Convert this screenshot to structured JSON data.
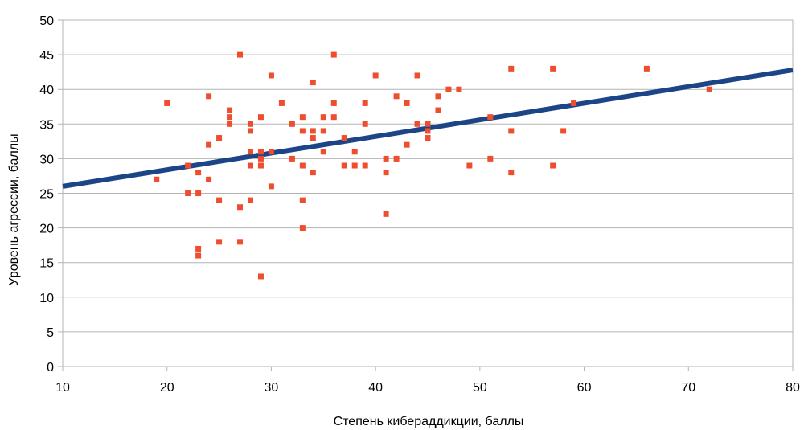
{
  "chart_data": {
    "type": "scatter",
    "xlabel": "Степень кибераддикции, баллы",
    "ylabel": "Уровень агрессии, баллы",
    "xlim": [
      10,
      80
    ],
    "ylim": [
      0,
      50
    ],
    "x_ticks": [
      10,
      20,
      30,
      40,
      50,
      60,
      70,
      80
    ],
    "y_ticks": [
      0,
      5,
      10,
      15,
      20,
      25,
      30,
      35,
      40,
      45,
      50
    ],
    "grid": "horizontal",
    "legend": "none",
    "colors": {
      "points": "#ee4d2e",
      "trendline": "#1c4587",
      "grid": "#b3b3b3"
    },
    "trendline": {
      "type": "linear",
      "x": [
        10,
        80
      ],
      "y": [
        26,
        42.8
      ]
    },
    "points": [
      {
        "x": 19,
        "y": 27
      },
      {
        "x": 20,
        "y": 38
      },
      {
        "x": 22,
        "y": 29
      },
      {
        "x": 22,
        "y": 25
      },
      {
        "x": 23,
        "y": 28
      },
      {
        "x": 23,
        "y": 25
      },
      {
        "x": 23,
        "y": 17
      },
      {
        "x": 23,
        "y": 16
      },
      {
        "x": 24,
        "y": 39
      },
      {
        "x": 24,
        "y": 32
      },
      {
        "x": 24,
        "y": 27
      },
      {
        "x": 25,
        "y": 33
      },
      {
        "x": 25,
        "y": 24
      },
      {
        "x": 25,
        "y": 18
      },
      {
        "x": 26,
        "y": 37
      },
      {
        "x": 26,
        "y": 36
      },
      {
        "x": 26,
        "y": 35
      },
      {
        "x": 27,
        "y": 45
      },
      {
        "x": 27,
        "y": 23
      },
      {
        "x": 27,
        "y": 18
      },
      {
        "x": 28,
        "y": 35
      },
      {
        "x": 28,
        "y": 34
      },
      {
        "x": 28,
        "y": 31
      },
      {
        "x": 28,
        "y": 29
      },
      {
        "x": 28,
        "y": 24
      },
      {
        "x": 29,
        "y": 36
      },
      {
        "x": 29,
        "y": 31
      },
      {
        "x": 29,
        "y": 30
      },
      {
        "x": 29,
        "y": 29
      },
      {
        "x": 29,
        "y": 13
      },
      {
        "x": 30,
        "y": 42
      },
      {
        "x": 30,
        "y": 31
      },
      {
        "x": 30,
        "y": 26
      },
      {
        "x": 31,
        "y": 38
      },
      {
        "x": 32,
        "y": 35
      },
      {
        "x": 32,
        "y": 30
      },
      {
        "x": 33,
        "y": 36
      },
      {
        "x": 33,
        "y": 34
      },
      {
        "x": 33,
        "y": 29
      },
      {
        "x": 33,
        "y": 24
      },
      {
        "x": 33,
        "y": 20
      },
      {
        "x": 34,
        "y": 41
      },
      {
        "x": 34,
        "y": 34
      },
      {
        "x": 34,
        "y": 33
      },
      {
        "x": 34,
        "y": 28
      },
      {
        "x": 35,
        "y": 36
      },
      {
        "x": 35,
        "y": 34
      },
      {
        "x": 35,
        "y": 31
      },
      {
        "x": 36,
        "y": 45
      },
      {
        "x": 36,
        "y": 38
      },
      {
        "x": 36,
        "y": 36
      },
      {
        "x": 37,
        "y": 33
      },
      {
        "x": 37,
        "y": 29
      },
      {
        "x": 38,
        "y": 31
      },
      {
        "x": 38,
        "y": 29
      },
      {
        "x": 39,
        "y": 38
      },
      {
        "x": 39,
        "y": 35
      },
      {
        "x": 39,
        "y": 29
      },
      {
        "x": 40,
        "y": 42
      },
      {
        "x": 41,
        "y": 30
      },
      {
        "x": 41,
        "y": 28
      },
      {
        "x": 41,
        "y": 22
      },
      {
        "x": 42,
        "y": 39
      },
      {
        "x": 42,
        "y": 30
      },
      {
        "x": 43,
        "y": 38
      },
      {
        "x": 43,
        "y": 32
      },
      {
        "x": 44,
        "y": 42
      },
      {
        "x": 44,
        "y": 35
      },
      {
        "x": 45,
        "y": 35
      },
      {
        "x": 45,
        "y": 34
      },
      {
        "x": 45,
        "y": 33
      },
      {
        "x": 46,
        "y": 39
      },
      {
        "x": 46,
        "y": 37
      },
      {
        "x": 47,
        "y": 40
      },
      {
        "x": 48,
        "y": 40
      },
      {
        "x": 49,
        "y": 29
      },
      {
        "x": 51,
        "y": 36
      },
      {
        "x": 51,
        "y": 30
      },
      {
        "x": 53,
        "y": 43
      },
      {
        "x": 53,
        "y": 34
      },
      {
        "x": 53,
        "y": 28
      },
      {
        "x": 57,
        "y": 43
      },
      {
        "x": 57,
        "y": 29
      },
      {
        "x": 58,
        "y": 34
      },
      {
        "x": 59,
        "y": 38
      },
      {
        "x": 66,
        "y": 43
      },
      {
        "x": 72,
        "y": 40
      }
    ]
  }
}
